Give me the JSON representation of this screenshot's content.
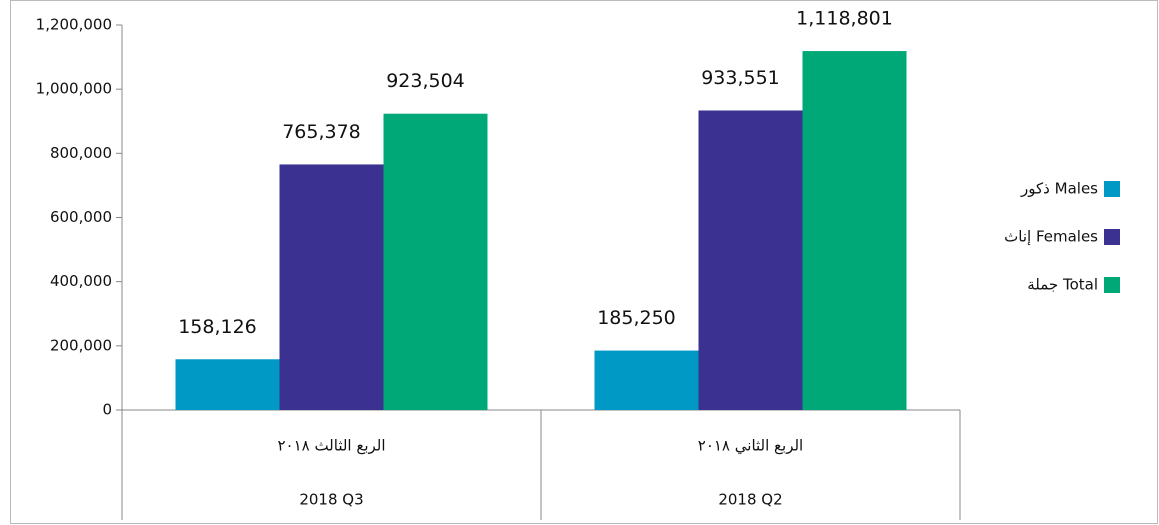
{
  "chart_data": {
    "type": "bar",
    "categories": [
      "2018 Q3",
      "2018 Q2"
    ],
    "category_labels_ar": [
      "الربع الثالث ٢٠١٨",
      "الربع الثاني ٢٠١٨"
    ],
    "series": [
      {
        "name": "ذكور Males",
        "color": "#0099c6",
        "values": [
          158126,
          185250
        ],
        "value_labels": [
          "158,126",
          "185,250"
        ]
      },
      {
        "name": "إناث Females",
        "color": "#3b3190",
        "values": [
          765378,
          933551
        ],
        "value_labels": [
          "765,378",
          "933,551"
        ]
      },
      {
        "name": "جملة Total",
        "color": "#00a878",
        "values": [
          923504,
          1118801
        ],
        "value_labels": [
          "923,504",
          "1,118,801"
        ]
      }
    ],
    "ylim": [
      0,
      1200000
    ],
    "yticks": [
      0,
      {
        "value": 200000,
        "label": "200,000"
      },
      {
        "value": 400000,
        "label": "400,000"
      },
      {
        "value": 600000,
        "label": "600,000"
      },
      {
        "value": 800000,
        "label": "800,000"
      },
      {
        "value": 1000000,
        "label": "1,000,000"
      },
      {
        "value": 1200000,
        "label": "1,200,000"
      }
    ],
    "grid": false,
    "legend": "right"
  }
}
